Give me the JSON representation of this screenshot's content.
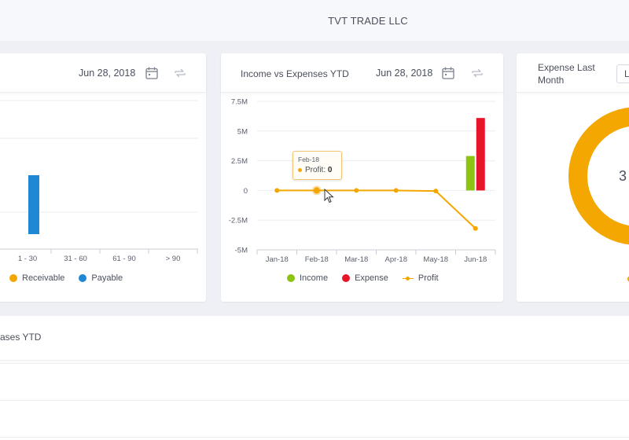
{
  "header": {
    "company": "TVT TRADE LLC"
  },
  "aging_card": {
    "date": "Jun 28, 2018",
    "categories": [
      "1 - 30",
      "31 - 60",
      "61 - 90",
      "> 90"
    ],
    "legend": [
      {
        "label": "Receivable",
        "color": "#f4a700"
      },
      {
        "label": "Payable",
        "color": "#1e88d4"
      }
    ]
  },
  "income_card": {
    "title": "Income vs Expenses YTD",
    "date": "Jun 28, 2018",
    "legend": [
      {
        "label": "Income",
        "color": "#8cc411"
      },
      {
        "label": "Expense",
        "color": "#e8142a"
      },
      {
        "label": "Profit",
        "color": "#f4a700"
      }
    ],
    "tooltip": {
      "month": "Feb-18",
      "label": "Profit:",
      "value": "0"
    }
  },
  "expense_card": {
    "title_line1": "Expense Last",
    "title_line2": "Month",
    "select_value": "L",
    "donut_value_partial": "3"
  },
  "bottom_card": {
    "title": "ases YTD"
  },
  "chart_data": [
    {
      "type": "bar",
      "title": "",
      "categories": [
        "1 - 30",
        "31 - 60",
        "61 - 90",
        "> 90"
      ],
      "series": [
        {
          "name": "Receivable",
          "values": [
            0,
            0,
            0,
            0
          ]
        },
        {
          "name": "Payable",
          "values": [
            1,
            0,
            0,
            0
          ]
        }
      ],
      "legend_position": "bottom"
    },
    {
      "type": "bar",
      "title": "Income vs Expenses YTD",
      "categories": [
        "Jan-18",
        "Feb-18",
        "Mar-18",
        "Apr-18",
        "May-18",
        "Jun-18"
      ],
      "y_ticks": [
        "7.5M",
        "5M",
        "2.5M",
        "0",
        "-2.5M",
        "-5M"
      ],
      "ylim": [
        -5000000,
        7500000
      ],
      "series": [
        {
          "name": "Income",
          "type": "bar",
          "values": [
            0,
            0,
            0,
            0,
            0,
            2900000
          ]
        },
        {
          "name": "Expense",
          "type": "bar",
          "values": [
            0,
            0,
            0,
            0,
            0,
            6100000
          ]
        },
        {
          "name": "Profit",
          "type": "line",
          "values": [
            0,
            0,
            0,
            0,
            -50000,
            -3200000
          ]
        }
      ],
      "grid": true,
      "legend_position": "bottom"
    },
    {
      "type": "pie",
      "title": "Expense Last Month",
      "slices": [
        {
          "name": "",
          "value": 100,
          "color": "#f4a700"
        }
      ]
    }
  ]
}
